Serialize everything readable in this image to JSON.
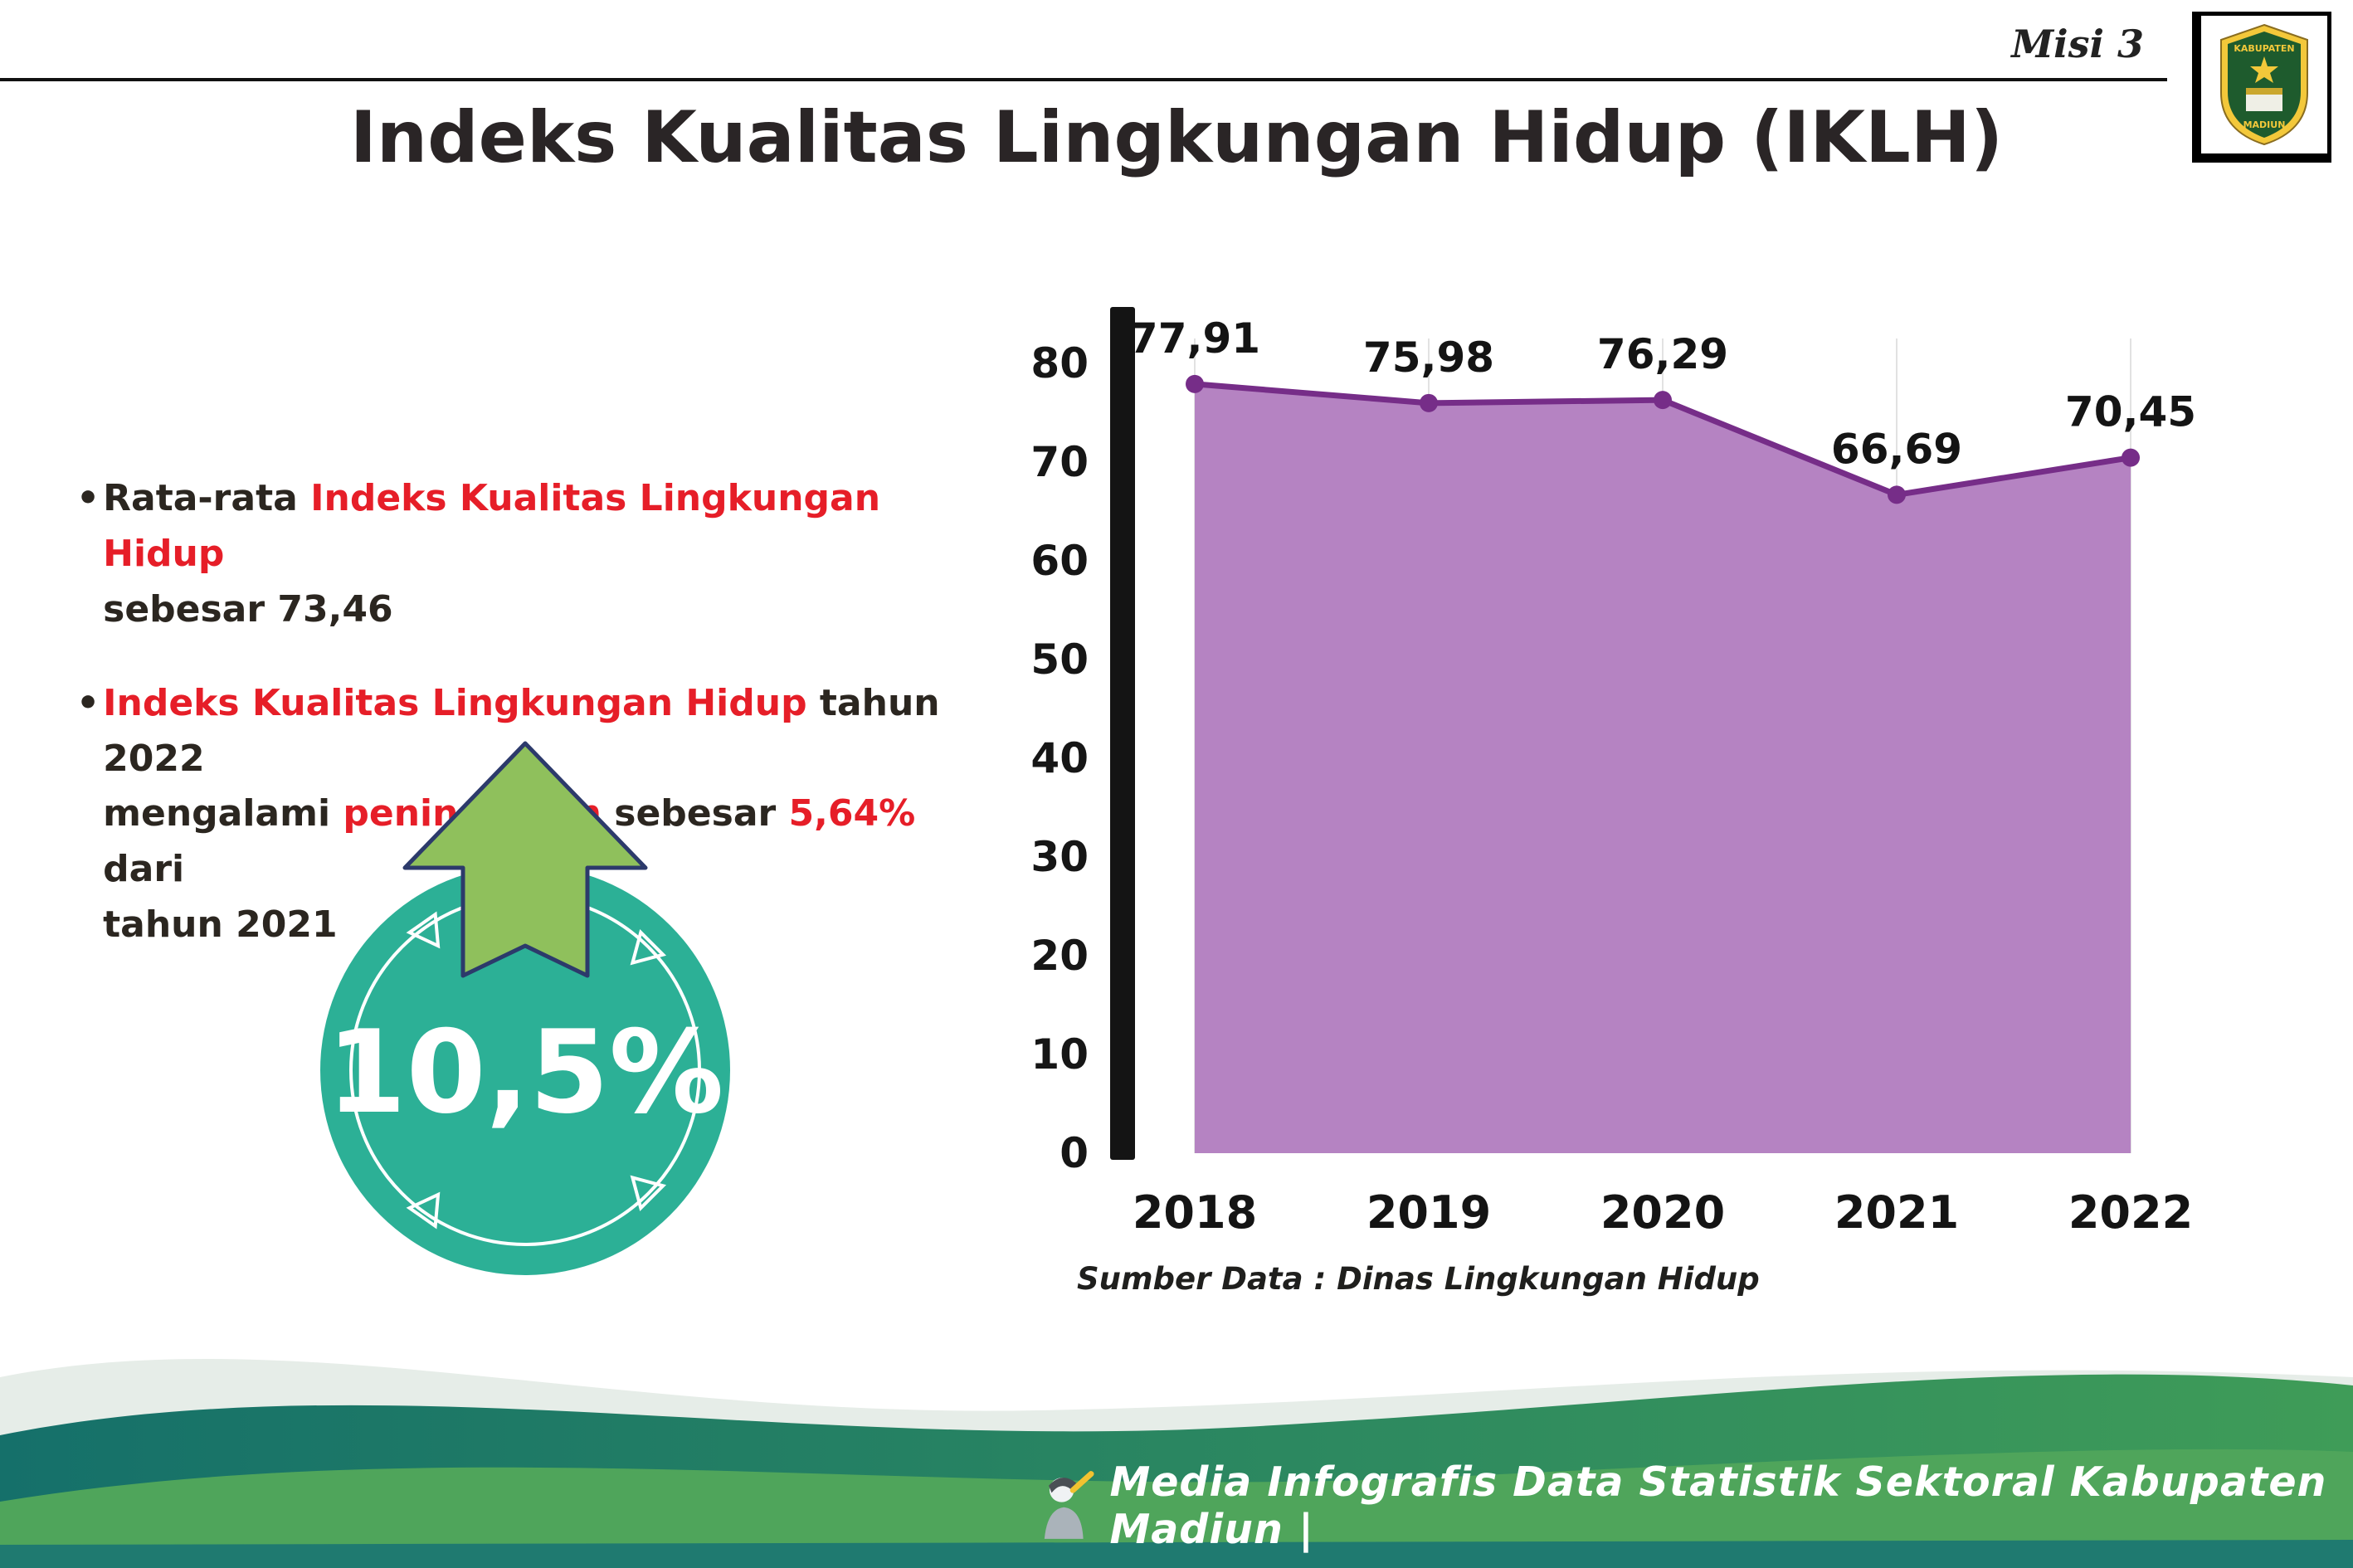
{
  "header": {
    "misi_label": "Misi 3",
    "title": "Indeks Kualitas Lingkungan Hidup (IKLH)"
  },
  "logo": {
    "line1": "KABUPATEN",
    "line2": "MADIUN"
  },
  "bullets": {
    "bullet_char": "•",
    "b1_lines": [
      [
        {
          "t": "Rata-rata ",
          "c": "dark"
        },
        {
          "t": "Indeks Kualitas Lingkungan Hidup",
          "c": "red"
        }
      ],
      [
        {
          "t": "sebesar 73,46",
          "c": "dark"
        }
      ]
    ],
    "b2_lines": [
      [
        {
          "t": "Indeks Kualitas Lingkungan Hidup",
          "c": "red"
        },
        {
          "t": " tahun 2022",
          "c": "dark"
        }
      ],
      [
        {
          "t": "mengalami ",
          "c": "dark"
        },
        {
          "t": "peningkatan",
          "c": "red"
        },
        {
          "t": " sebesar ",
          "c": "dark"
        },
        {
          "t": "5,64%",
          "c": "red"
        },
        {
          "t": " dari",
          "c": "dark"
        }
      ],
      [
        {
          "t": "tahun 2021",
          "c": "dark"
        }
      ]
    ]
  },
  "badge": {
    "value": "10,5%"
  },
  "chart_data": {
    "type": "area",
    "categories": [
      "2018",
      "2019",
      "2020",
      "2021",
      "2022"
    ],
    "values": [
      77.91,
      75.98,
      76.29,
      66.69,
      70.45
    ],
    "value_labels": [
      "77,91",
      "75,98",
      "76,29",
      "66,69",
      "70,45"
    ],
    "title": "",
    "xlabel": "",
    "ylabel": "",
    "ylim": [
      0,
      80
    ],
    "yticks": [
      0,
      10,
      20,
      30,
      40,
      50,
      60,
      70,
      80
    ],
    "grid": "vertical-light",
    "legend": "none",
    "area_color": "#b583c2",
    "line_color": "#762d88",
    "source_note": "Sumber Data : Dinas Lingkungan Hidup"
  },
  "footer": {
    "text": "Media Infografis Data Statistik Sektoral Kabupaten Madiun |"
  },
  "colors": {
    "accent_red": "#e61e28",
    "badge_teal": "#2cb096",
    "arrow_green": "#8fc05c",
    "chart_area": "#b583c2",
    "chart_line": "#762d88",
    "footer_green": "#4fa55b"
  }
}
